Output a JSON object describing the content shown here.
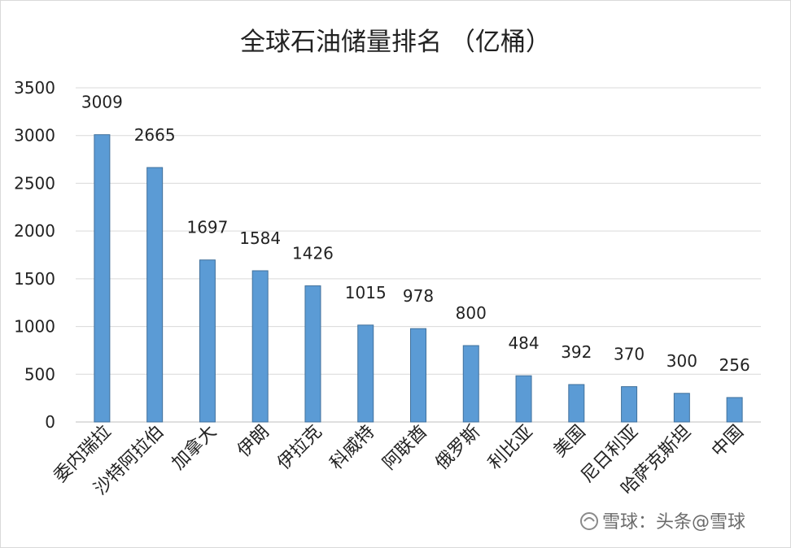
{
  "chart_data": {
    "type": "bar",
    "title": "全球石油储量排名 （亿桶）",
    "categories": [
      "委内瑞拉",
      "沙特阿拉伯",
      "加拿大",
      "伊朗",
      "伊拉克",
      "科威特",
      "阿联酋",
      "俄罗斯",
      "利比亚",
      "美国",
      "尼日利亚",
      "哈萨克斯坦",
      "中国"
    ],
    "values": [
      3009,
      2665,
      1697,
      1584,
      1426,
      1015,
      978,
      800,
      484,
      392,
      370,
      300,
      256
    ],
    "ylim": [
      0,
      3500
    ],
    "yticks": [
      "0",
      "500",
      "1000",
      "1500",
      "2000",
      "2500",
      "3000",
      "3500"
    ],
    "xlabel": "",
    "ylabel": "",
    "grid": true,
    "data_labels": true,
    "colors": {
      "bar": "#5b9bd5",
      "bar_edge": "#41719c",
      "grid": "#d9d9d9"
    }
  },
  "watermark": {
    "text": "雪球：头条@雪球"
  }
}
